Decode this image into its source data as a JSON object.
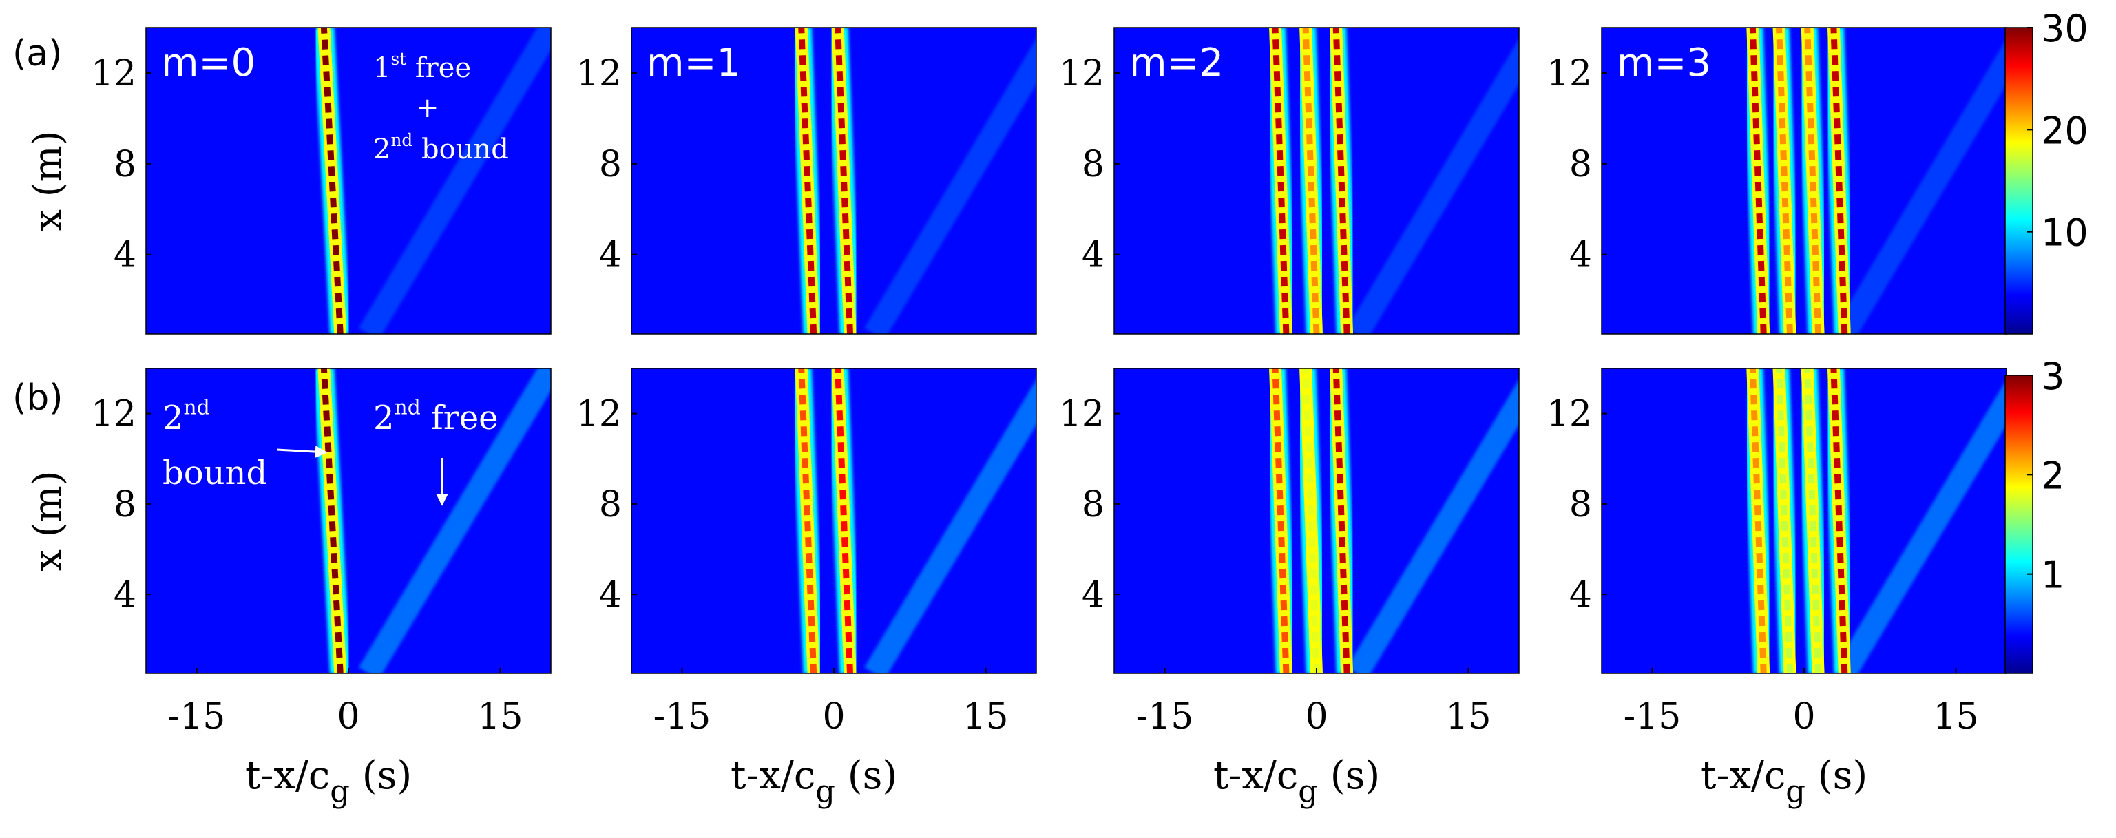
{
  "chart_data": {
    "type": "heatmap",
    "rows": [
      {
        "label": "(a)",
        "colorbar": {
          "range": [
            0,
            30
          ],
          "ticks": [
            "30",
            "20",
            "10"
          ],
          "tick_values": [
            30,
            20,
            10
          ]
        },
        "panels": [
          {
            "title": "m=0",
            "tracks": [
              {
                "t": -0.8,
                "slope": -0.12,
                "peak": 30
              }
            ],
            "annotations": [
              {
                "main": "1",
                "sup": "st",
                "tail": " free"
              },
              {
                "main": "+",
                "sup": "",
                "tail": ""
              },
              {
                "main": "2",
                "sup": "nd",
                "tail": " bound"
              }
            ]
          },
          {
            "title": "m=1",
            "tracks": [
              {
                "t": -2.0,
                "slope": -0.09,
                "peak": 28
              },
              {
                "t": 1.6,
                "slope": -0.09,
                "peak": 28
              }
            ]
          },
          {
            "title": "m=2",
            "tracks": [
              {
                "t": -3.0,
                "slope": -0.08,
                "peak": 28
              },
              {
                "t": 0.0,
                "slope": -0.08,
                "peak": 22
              },
              {
                "t": 3.0,
                "slope": -0.08,
                "peak": 28
              }
            ]
          },
          {
            "title": "m=3",
            "tracks": [
              {
                "t": -4.0,
                "slope": -0.08,
                "peak": 28
              },
              {
                "t": -1.4,
                "slope": -0.08,
                "peak": 22
              },
              {
                "t": 1.4,
                "slope": -0.08,
                "peak": 22
              },
              {
                "t": 4.0,
                "slope": -0.08,
                "peak": 28
              }
            ]
          }
        ]
      },
      {
        "label": "(b)",
        "colorbar": {
          "range": [
            0,
            3
          ],
          "ticks": [
            "3",
            "2",
            "1"
          ],
          "tick_values": [
            3,
            2,
            1
          ]
        },
        "panels": [
          {
            "title": "",
            "tracks": [
              {
                "t": -0.8,
                "slope": -0.12,
                "peak": 3
              }
            ],
            "annotations": [
              {
                "main": "2",
                "sup": "nd",
                "tail": ""
              },
              {
                "main": "bound",
                "sup": "",
                "tail": ""
              },
              {
                "main": "2",
                "sup": "nd",
                "tail": " free"
              }
            ]
          },
          {
            "title": "",
            "tracks": [
              {
                "t": -2.0,
                "slope": -0.09,
                "peak": 2.4
              },
              {
                "t": 1.6,
                "slope": -0.09,
                "peak": 2.6
              }
            ]
          },
          {
            "title": "",
            "tracks": [
              {
                "t": -3.0,
                "slope": -0.08,
                "peak": 2.4
              },
              {
                "t": 0.0,
                "slope": -0.08,
                "peak": 1.8
              },
              {
                "t": 3.0,
                "slope": -0.08,
                "peak": 2.8
              }
            ]
          },
          {
            "title": "",
            "tracks": [
              {
                "t": -4.0,
                "slope": -0.08,
                "peak": 2.2
              },
              {
                "t": -1.4,
                "slope": -0.08,
                "peak": 1.7
              },
              {
                "t": 1.4,
                "slope": -0.08,
                "peak": 1.7
              },
              {
                "t": 4.0,
                "slope": -0.08,
                "peak": 2.8
              }
            ]
          }
        ]
      }
    ],
    "x_ticks": [
      "-15",
      "0",
      "15"
    ],
    "x_tick_values": [
      -15,
      0,
      15
    ],
    "y_ticks": [
      "12",
      "8",
      "4"
    ],
    "y_tick_values": [
      12,
      8,
      4
    ],
    "xlim": [
      -20,
      20
    ],
    "ylim": [
      0.5,
      14
    ],
    "xlabel": {
      "main": "t-x/c",
      "sub": "g",
      "tail": " (s)"
    },
    "ylabel": "x (m)",
    "colormap": "jet"
  }
}
